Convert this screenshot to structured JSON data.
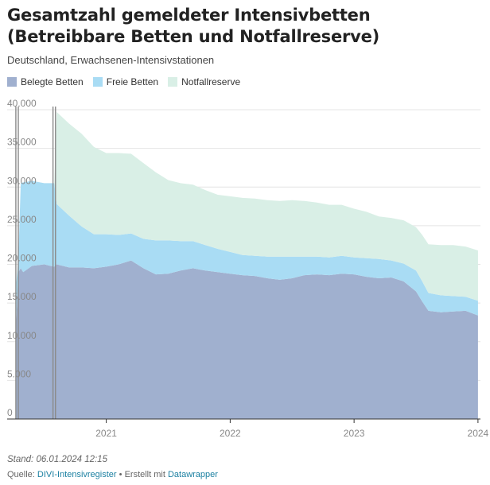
{
  "header": {
    "title": "Gesamtzahl gemeldeter Intensivbetten (Betreibbare Betten und Notfallreserve)",
    "subtitle": "Deutschland, Erwachsenen-Intensivstationen"
  },
  "legend": [
    {
      "label": "Belegte Betten",
      "color": "#a0b0cf"
    },
    {
      "label": "Freie Betten",
      "color": "#a9dcf4"
    },
    {
      "label": "Notfallreserve",
      "color": "#d9efe6"
    }
  ],
  "footer": {
    "stand": "Stand: 06.01.2024 12:15",
    "source_prefix": "Quelle:",
    "source_link": "DIVI-Intensivregister",
    "separator": "•",
    "made_with": "Erstellt mit",
    "tool_link": "Datawrapper"
  },
  "chart_data": {
    "type": "area",
    "stacked": true,
    "y_ticks": [
      "0",
      "5.000",
      "10.000",
      "15.000",
      "20.000",
      "25.000",
      "30.000",
      "35.000",
      "40.000"
    ],
    "y_tick_values": [
      0,
      5000,
      10000,
      15000,
      20000,
      25000,
      30000,
      35000,
      40000
    ],
    "ylim": [
      0,
      40000
    ],
    "x_ticks": [
      "2021",
      "2022",
      "2023",
      "2024"
    ],
    "x_tick_values": [
      2021.0,
      2022.0,
      2023.0,
      2024.0
    ],
    "xlim": [
      2020.2,
      2024.02
    ],
    "grid": true,
    "legend_position": "top-left",
    "x": [
      2020.27,
      2020.29,
      2020.31,
      2020.33,
      2020.4,
      2020.5,
      2020.55,
      2020.58,
      2020.6,
      2020.7,
      2020.8,
      2020.9,
      2021.0,
      2021.1,
      2021.2,
      2021.3,
      2021.4,
      2021.5,
      2021.6,
      2021.7,
      2021.8,
      2021.9,
      2022.0,
      2022.1,
      2022.2,
      2022.3,
      2022.4,
      2022.5,
      2022.6,
      2022.7,
      2022.8,
      2022.9,
      2023.0,
      2023.1,
      2023.2,
      2023.3,
      2023.4,
      2023.5,
      2023.55,
      2023.6,
      2023.7,
      2023.8,
      2023.9,
      2024.0
    ],
    "series": [
      {
        "name": "Belegte Betten",
        "color": "#a0b0cf",
        "values": [
          11500,
          19000,
          19500,
          19000,
          19800,
          20000,
          19800,
          19700,
          20000,
          19600,
          19600,
          19500,
          19700,
          20000,
          20500,
          19500,
          18700,
          18800,
          19200,
          19500,
          19200,
          19000,
          18800,
          18600,
          18500,
          18200,
          18000,
          18200,
          18600,
          18700,
          18600,
          18800,
          18700,
          18400,
          18200,
          18300,
          17800,
          16500,
          15200,
          14000,
          13800,
          13900,
          14000,
          13400
        ]
      },
      {
        "name": "Freie Betten",
        "color": "#a9dcf4",
        "values": [
          5500,
          1500,
          11000,
          11600,
          11000,
          10500,
          10700,
          10800,
          7800,
          6700,
          5300,
          4400,
          4200,
          3800,
          3500,
          3800,
          4400,
          4300,
          3800,
          3500,
          3300,
          3000,
          2800,
          2600,
          2600,
          2800,
          3000,
          2800,
          2400,
          2300,
          2300,
          2300,
          2200,
          2400,
          2500,
          2200,
          2300,
          2700,
          2600,
          2300,
          2200,
          2000,
          1800,
          1900
        ]
      },
      {
        "name": "Notfallreserve",
        "color": "#d9efe6",
        "values": [
          0,
          0,
          0,
          0,
          0,
          0,
          0,
          0,
          11900,
          11900,
          12000,
          11300,
          10500,
          10600,
          10300,
          9800,
          8800,
          7800,
          7500,
          7300,
          7100,
          7000,
          7200,
          7400,
          7400,
          7300,
          7200,
          7300,
          7200,
          7000,
          6800,
          6600,
          6300,
          6000,
          5500,
          5500,
          5600,
          5600,
          6000,
          6300,
          6500,
          6600,
          6500,
          6500
        ]
      }
    ]
  }
}
